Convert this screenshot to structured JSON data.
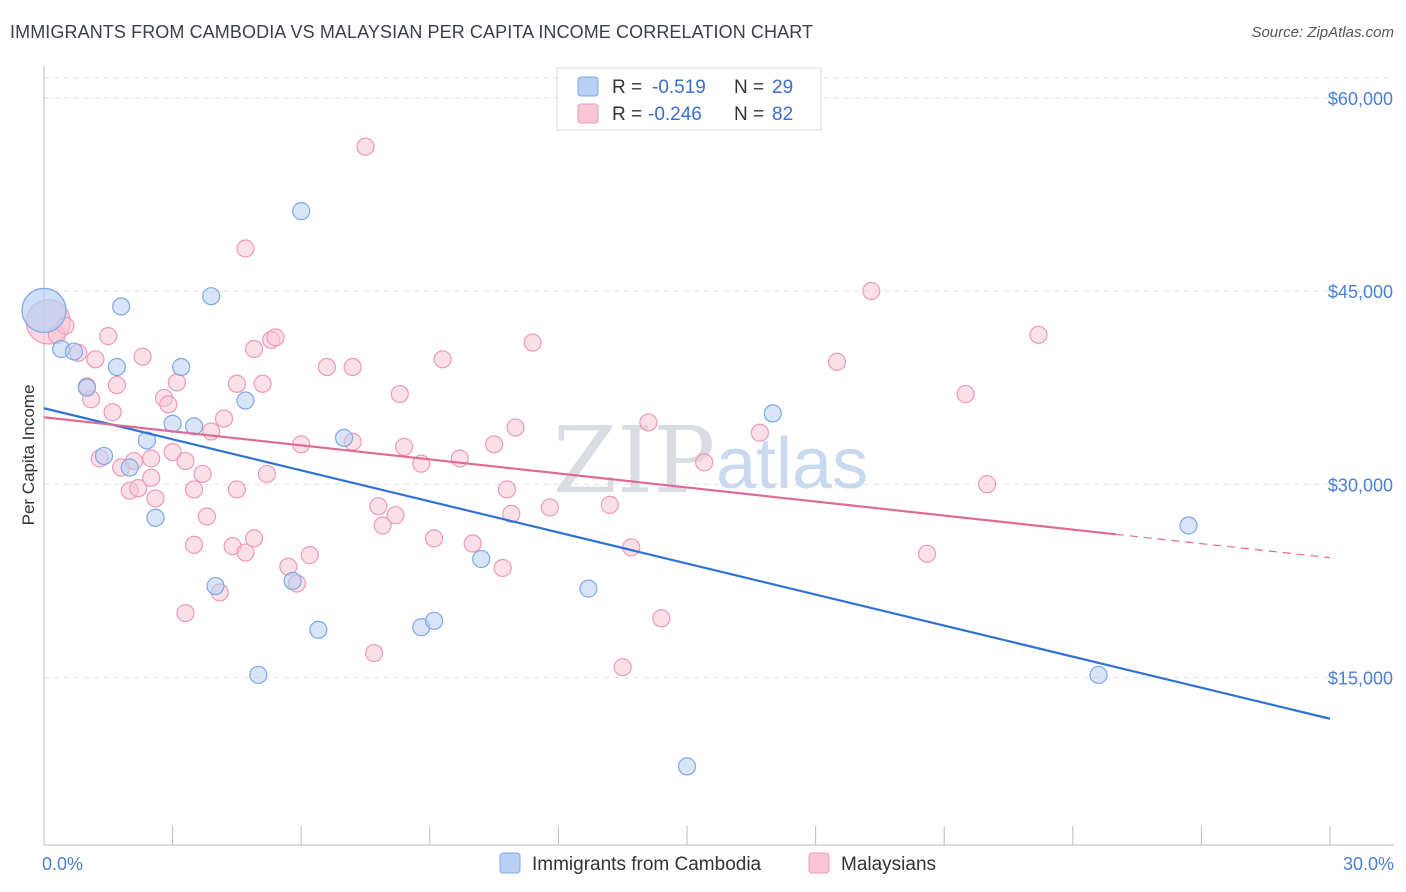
{
  "title": "IMMIGRANTS FROM CAMBODIA VS MALAYSIAN PER CAPITA INCOME CORRELATION CHART",
  "source": "Source: ZipAtlas.com",
  "watermark": {
    "zip": "ZIP",
    "atlas": "atlas"
  },
  "colors": {
    "blue_fill": "#b8d0f3",
    "blue_stroke": "#7fa8e6",
    "blue_line": "#2f72d6",
    "pink_fill": "#f8c6d6",
    "pink_stroke": "#ee9ab5",
    "pink_line": "#e06896",
    "grid": "#dde0e6",
    "label": "#4a7fd4"
  },
  "legend": {
    "rows": [
      {
        "r_label": "R =",
        "r_value": "-0.519",
        "n_label": "N =",
        "n_value": "29",
        "series": "blue"
      },
      {
        "r_label": "R =",
        "r_value": "-0.246",
        "n_label": "N =",
        "n_value": "82",
        "series": "pink"
      }
    ]
  },
  "chart_data": {
    "type": "scatter",
    "title": "IMMIGRANTS FROM CAMBODIA VS MALAYSIAN PER CAPITA INCOME CORRELATION CHART",
    "xlabel": "",
    "ylabel": "Per Capita Income",
    "xlim": [
      0,
      30
    ],
    "ylim": [
      2000,
      62000
    ],
    "x_tick_labels": [
      {
        "value": 0,
        "label": "0.0%"
      },
      {
        "value": 30,
        "label": "30.0%"
      }
    ],
    "y_ticks": [
      {
        "value": 60000,
        "label": "$60,000"
      },
      {
        "value": 45000,
        "label": "$45,000"
      },
      {
        "value": 30000,
        "label": "$30,000"
      },
      {
        "value": 15000,
        "label": "$15,000"
      }
    ],
    "series": [
      {
        "name": "Immigrants from Cambodia",
        "color": "blue",
        "points": [
          [
            0.0,
            43.5,
            1
          ],
          [
            0.4,
            40.5,
            0
          ],
          [
            0.7,
            40.3,
            0
          ],
          [
            1.0,
            37.5,
            0
          ],
          [
            1.7,
            39.1,
            0
          ],
          [
            1.8,
            43.8,
            0
          ],
          [
            1.4,
            32.2,
            0
          ],
          [
            2.0,
            31.3,
            0
          ],
          [
            2.4,
            33.4,
            0
          ],
          [
            2.6,
            27.4,
            0
          ],
          [
            3.0,
            34.7,
            0
          ],
          [
            3.2,
            39.1,
            0
          ],
          [
            3.5,
            34.5,
            0
          ],
          [
            3.9,
            44.6,
            0
          ],
          [
            4.0,
            22.1,
            0
          ],
          [
            4.7,
            36.5,
            0
          ],
          [
            5.0,
            15.2,
            0
          ],
          [
            5.8,
            22.5,
            0
          ],
          [
            6.0,
            51.2,
            0
          ],
          [
            6.4,
            18.7,
            0
          ],
          [
            7.0,
            33.6,
            0
          ],
          [
            8.8,
            18.9,
            0
          ],
          [
            9.1,
            19.4,
            0
          ],
          [
            10.2,
            24.2,
            0
          ],
          [
            12.7,
            21.9,
            0
          ],
          [
            15.0,
            8.1,
            0
          ],
          [
            17.0,
            35.5,
            0
          ],
          [
            24.6,
            15.2,
            0
          ],
          [
            26.7,
            26.8,
            0
          ]
        ],
        "trend": {
          "x0": 0,
          "y0": 35.9,
          "x1": 30,
          "y1": 11.8,
          "dash_from": null
        }
      },
      {
        "name": "Malaysians",
        "color": "pink",
        "points": [
          [
            0.1,
            42.6,
            1
          ],
          [
            0.3,
            41.6,
            0
          ],
          [
            0.5,
            42.3,
            0
          ],
          [
            0.8,
            40.2,
            0
          ],
          [
            1.1,
            36.6,
            0
          ],
          [
            1.0,
            37.6,
            0
          ],
          [
            1.2,
            39.7,
            0
          ],
          [
            1.5,
            41.5,
            0
          ],
          [
            1.6,
            35.6,
            0
          ],
          [
            1.3,
            32.0,
            0
          ],
          [
            1.8,
            31.3,
            0
          ],
          [
            1.7,
            37.7,
            0
          ],
          [
            2.1,
            31.8,
            0
          ],
          [
            2.0,
            29.5,
            0
          ],
          [
            2.2,
            29.7,
            0
          ],
          [
            2.3,
            39.9,
            0
          ],
          [
            2.5,
            32.0,
            0
          ],
          [
            2.5,
            30.5,
            0
          ],
          [
            2.6,
            28.9,
            0
          ],
          [
            2.8,
            36.7,
            0
          ],
          [
            2.9,
            36.2,
            0
          ],
          [
            3.0,
            32.5,
            0
          ],
          [
            3.1,
            37.9,
            0
          ],
          [
            3.3,
            20.0,
            0
          ],
          [
            3.3,
            31.8,
            0
          ],
          [
            3.5,
            29.6,
            0
          ],
          [
            3.5,
            25.3,
            0
          ],
          [
            3.7,
            30.8,
            0
          ],
          [
            3.8,
            27.5,
            0
          ],
          [
            3.9,
            34.1,
            0
          ],
          [
            4.1,
            21.6,
            0
          ],
          [
            4.2,
            35.1,
            0
          ],
          [
            4.4,
            25.2,
            0
          ],
          [
            4.5,
            37.8,
            0
          ],
          [
            4.5,
            29.6,
            0
          ],
          [
            4.7,
            24.7,
            0
          ],
          [
            4.7,
            48.3,
            0
          ],
          [
            4.9,
            25.8,
            0
          ],
          [
            4.9,
            40.5,
            0
          ],
          [
            5.1,
            37.8,
            0
          ],
          [
            5.2,
            30.8,
            0
          ],
          [
            5.3,
            41.2,
            0
          ],
          [
            5.4,
            41.4,
            0
          ],
          [
            5.7,
            23.6,
            0
          ],
          [
            5.9,
            22.3,
            0
          ],
          [
            6.0,
            33.1,
            0
          ],
          [
            6.2,
            24.5,
            0
          ],
          [
            6.6,
            39.1,
            0
          ],
          [
            7.2,
            33.3,
            0
          ],
          [
            7.2,
            39.1,
            0
          ],
          [
            7.5,
            56.2,
            0
          ],
          [
            7.7,
            16.9,
            0
          ],
          [
            7.8,
            28.3,
            0
          ],
          [
            7.9,
            26.8,
            0
          ],
          [
            8.2,
            27.6,
            0
          ],
          [
            8.3,
            37.0,
            0
          ],
          [
            8.4,
            32.9,
            0
          ],
          [
            8.8,
            31.6,
            0
          ],
          [
            9.1,
            25.8,
            0
          ],
          [
            9.3,
            39.7,
            0
          ],
          [
            9.7,
            32.0,
            0
          ],
          [
            10.0,
            25.4,
            0
          ],
          [
            10.5,
            33.1,
            0
          ],
          [
            10.7,
            23.5,
            0
          ],
          [
            10.9,
            27.7,
            0
          ],
          [
            10.8,
            29.6,
            0
          ],
          [
            11.0,
            34.4,
            0
          ],
          [
            11.4,
            41.0,
            0
          ],
          [
            11.8,
            28.2,
            0
          ],
          [
            13.2,
            28.4,
            0
          ],
          [
            13.5,
            15.8,
            0
          ],
          [
            13.7,
            25.1,
            0
          ],
          [
            14.1,
            34.8,
            0
          ],
          [
            14.4,
            19.6,
            0
          ],
          [
            15.4,
            31.7,
            0
          ],
          [
            16.7,
            34.0,
            0
          ],
          [
            18.5,
            39.5,
            0
          ],
          [
            19.3,
            45.0,
            0
          ],
          [
            20.6,
            24.6,
            0
          ],
          [
            23.2,
            41.6,
            0
          ],
          [
            21.5,
            37.0,
            0
          ],
          [
            22.0,
            30.0,
            0
          ]
        ],
        "trend": {
          "x0": 0,
          "y0": 35.2,
          "x1": 30,
          "y1": 24.3,
          "dash_from": 25.0
        }
      }
    ],
    "legend_entries": [
      "Immigrants from Cambodia",
      "Malaysians"
    ]
  }
}
